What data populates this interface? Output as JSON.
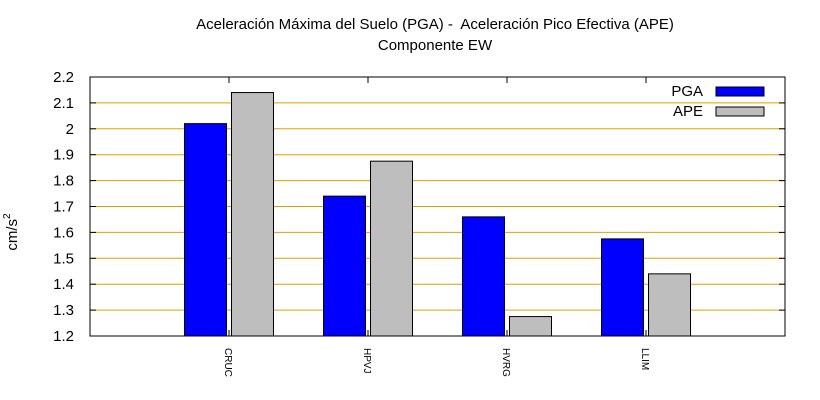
{
  "chart_data": {
    "type": "bar",
    "title": "Aceleración Máxima del Suelo (PGA) -  Aceleración Pico Efectiva (APE)",
    "subtitle": "Componente EW",
    "xlabel": "",
    "ylabel_base": "cm/s",
    "ylabel_sup": "2",
    "categories": [
      "CRUC",
      "HPVJ",
      "HVRG",
      "LLIM"
    ],
    "series": [
      {
        "name": "PGA",
        "values": [
          2.02,
          1.74,
          1.66,
          1.575
        ],
        "color": "#0000ff"
      },
      {
        "name": "APE",
        "values": [
          2.14,
          1.875,
          1.275,
          1.44
        ],
        "color": "#bebebe"
      }
    ],
    "ylim": [
      1.2,
      2.2
    ],
    "yticks": [
      "1.2",
      "1.3",
      "1.4",
      "1.5",
      "1.6",
      "1.7",
      "1.8",
      "1.9",
      "2",
      "2.1",
      "2.2"
    ],
    "grid": true,
    "grid_color": "#e0a000",
    "legend_position": "top-right"
  }
}
